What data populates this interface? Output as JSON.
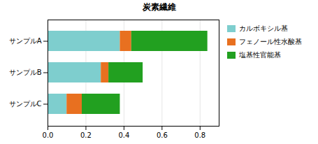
{
  "chart_data": {
    "type": "bar",
    "orientation": "horizontal",
    "stacked": true,
    "title": "炭素繊維",
    "categories": [
      "サンプルC",
      "サンプルB",
      "サンプルA"
    ],
    "series": [
      {
        "name": "カルボキシル基",
        "color": "#7ECECE",
        "values": [
          0.1,
          0.28,
          0.38
        ]
      },
      {
        "name": "フェノール性水酸基",
        "color": "#E87020",
        "values": [
          0.08,
          0.04,
          0.06
        ]
      },
      {
        "name": "塩基性官能基",
        "color": "#22A020",
        "values": [
          0.2,
          0.18,
          0.4
        ]
      }
    ],
    "xlim": [
      0,
      0.9
    ],
    "xticks": [
      0,
      0.2,
      0.4,
      0.6,
      0.8
    ],
    "grid": true,
    "legend": "right"
  }
}
